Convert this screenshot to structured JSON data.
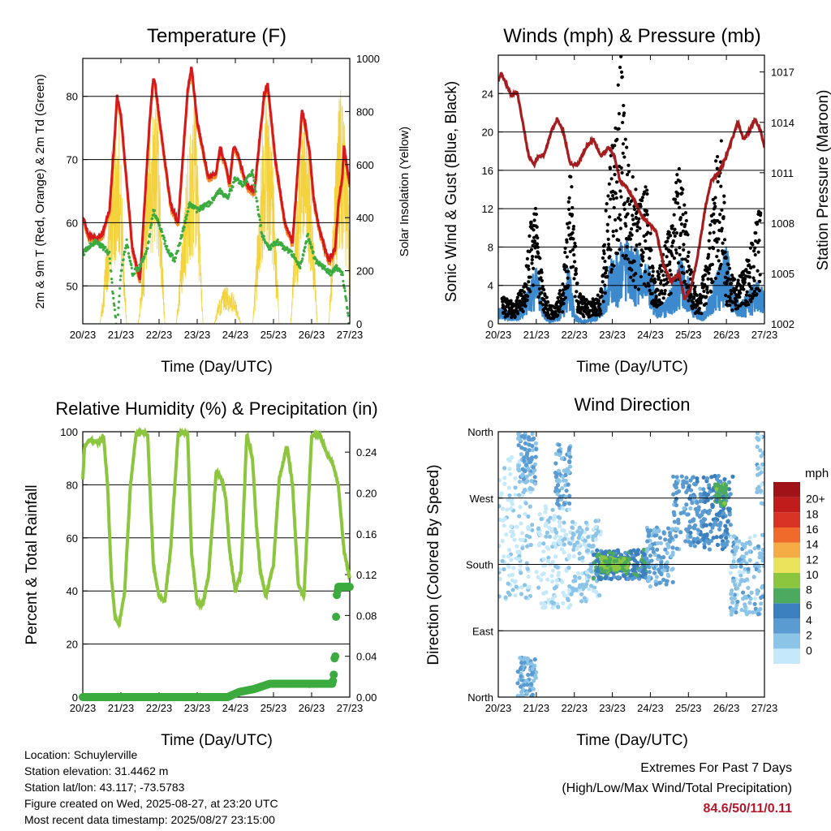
{
  "time_ticks": [
    "20/23",
    "21/23",
    "22/23",
    "23/23",
    "24/23",
    "25/23",
    "26/23",
    "27/23"
  ],
  "footer": {
    "location": "Location: Schuylerville",
    "elevation": "Station elevation: 31.4462 m",
    "latlon": "Station lat/lon: 43.117; -73.5783",
    "created": "Figure created on Wed, 2025-08-27, at 23:20 UTC",
    "recent": "Most recent data timestamp: 2025/08/27 23:15:00",
    "extremes_title": "Extremes For Past 7 Days",
    "extremes_subtitle": "(High/Low/Max Wind/Total Precipitation)",
    "extremes_value": "84.6/50/11/0.11"
  },
  "chart_data": [
    {
      "id": "temperature",
      "type": "line",
      "title": "Temperature (F)",
      "xlabel": "Time (Day/UTC)",
      "ylabel": "2m & 9m T (Red, Orange) & 2m Td (Green)",
      "ylabel_right": "Solar Insolation (Yellow)",
      "xlim": [
        0,
        7
      ],
      "ylim": [
        44,
        86
      ],
      "ylim_right": [
        0,
        1000
      ],
      "yticks": [
        50,
        60,
        70,
        80
      ],
      "yticks_right": [
        0,
        200,
        400,
        600,
        800,
        1000
      ],
      "grid": true,
      "series": [
        {
          "key": "temp",
          "color": "#d7191c",
          "x": [
            0,
            0.15,
            0.35,
            0.5,
            0.7,
            0.85,
            0.9,
            1.0,
            1.3,
            1.5,
            1.75,
            1.85,
            1.9,
            2.0,
            2.3,
            2.5,
            2.75,
            2.85,
            2.9,
            3.0,
            3.3,
            3.5,
            3.6,
            3.75,
            3.85,
            3.95,
            4.05,
            4.3,
            4.5,
            4.75,
            4.85,
            4.95,
            5.05,
            5.3,
            5.5,
            5.75,
            5.85,
            5.95,
            6.05,
            6.2,
            6.45,
            6.55,
            6.62,
            6.7,
            6.8,
            6.85,
            6.9,
            7.0
          ],
          "y": [
            61,
            58,
            57.5,
            58,
            62,
            75,
            80,
            77,
            56,
            51,
            76,
            83,
            82,
            77,
            63,
            60,
            81,
            84.6,
            82,
            76,
            67,
            68,
            72,
            69,
            66,
            72,
            71,
            66,
            65,
            80,
            82,
            76,
            70,
            60,
            57,
            78,
            75,
            71,
            64,
            59,
            54,
            55,
            56,
            63,
            67,
            72,
            70,
            66
          ]
        },
        {
          "key": "solar",
          "axis": "right",
          "color": "#f4d23c",
          "x": [
            0.45,
            0.55,
            0.75,
            0.95,
            1.15,
            1.45,
            1.55,
            1.75,
            1.95,
            2.15,
            2.45,
            2.55,
            2.75,
            2.95,
            3.15,
            3.45,
            3.55,
            3.75,
            3.95,
            4.15,
            4.45,
            4.55,
            4.75,
            4.95,
            5.15,
            5.45,
            5.55,
            5.75,
            5.95,
            6.15,
            6.45,
            6.55,
            6.75,
            6.95,
            7.0
          ],
          "y": [
            0,
            150,
            650,
            820,
            0,
            0,
            180,
            700,
            900,
            0,
            0,
            200,
            650,
            880,
            0,
            0,
            80,
            150,
            120,
            0,
            0,
            250,
            900,
            750,
            0,
            0,
            300,
            800,
            700,
            0,
            0,
            350,
            980,
            600,
            200
          ]
        },
        {
          "key": "dewpoint",
          "color": "#3cab3f",
          "x": [
            0,
            0.2,
            0.35,
            0.55,
            0.7,
            0.8,
            0.9,
            1.0,
            1.15,
            1.3,
            1.5,
            1.7,
            1.85,
            2.0,
            2.2,
            2.4,
            2.6,
            2.8,
            3.0,
            3.3,
            3.6,
            3.8,
            4.0,
            4.2,
            4.45,
            4.7,
            4.9,
            5.1,
            5.3,
            5.5,
            5.7,
            5.9,
            6.1,
            6.3,
            6.5,
            6.65,
            6.8,
            6.9,
            7.0
          ],
          "y": [
            55,
            56.5,
            57,
            56,
            55,
            48,
            43,
            52,
            57,
            52,
            53,
            56,
            62,
            60,
            56,
            54,
            58,
            63,
            62,
            63,
            65,
            64,
            67,
            66,
            68,
            58,
            56,
            57,
            56,
            55,
            53,
            58,
            54,
            53,
            52,
            53,
            52,
            48,
            43
          ]
        }
      ]
    },
    {
      "id": "winds",
      "type": "line",
      "title": "Winds (mph) & Pressure (mb)",
      "xlabel": "Time (Day/UTC)",
      "ylabel": "Sonic Wind & Gust (Blue, Black)",
      "ylabel_right": "Station Pressure (Maroon)",
      "xlim": [
        0,
        7
      ],
      "ylim": [
        0,
        28
      ],
      "ylim_right": [
        1002,
        1018
      ],
      "yticks": [
        0,
        4,
        8,
        12,
        16,
        20,
        24
      ],
      "yticks_right": [
        1002,
        1005,
        1008,
        1011,
        1014,
        1017
      ],
      "grid": true,
      "series": [
        {
          "key": "wind",
          "color": "#3c89cd",
          "x": [
            0,
            0.2,
            0.5,
            0.7,
            0.85,
            1.0,
            1.2,
            1.4,
            1.6,
            1.75,
            1.85,
            2.0,
            2.2,
            2.4,
            2.6,
            2.8,
            3.0,
            3.2,
            3.4,
            3.6,
            3.8,
            4.0,
            4.2,
            4.4,
            4.6,
            4.8,
            5.0,
            5.2,
            5.4,
            5.6,
            5.8,
            6.0,
            6.2,
            6.4,
            6.6,
            6.8,
            7.0
          ],
          "y": [
            1.5,
            1.2,
            1.0,
            2.5,
            4.0,
            5.5,
            1.0,
            0.5,
            1.0,
            3.0,
            6.0,
            1.0,
            0.3,
            0.5,
            1.0,
            4.0,
            6.0,
            7.0,
            8.0,
            7.0,
            6.0,
            5.0,
            2.0,
            2.0,
            4.0,
            6.0,
            4.0,
            1.5,
            1.0,
            3.0,
            5.0,
            7.0,
            3.0,
            2.0,
            3.0,
            4.0,
            3.0
          ]
        },
        {
          "key": "gust",
          "color": "#000000",
          "x": [
            0.1,
            0.4,
            0.7,
            0.85,
            0.95,
            1.05,
            1.3,
            1.5,
            1.7,
            1.8,
            1.9,
            2.1,
            2.4,
            2.7,
            2.85,
            3.0,
            3.1,
            3.2,
            3.35,
            3.5,
            3.7,
            3.9,
            4.1,
            4.3,
            4.55,
            4.7,
            4.85,
            5.1,
            5.3,
            5.55,
            5.7,
            5.85,
            6.0,
            6.2,
            6.45,
            6.7,
            6.9
          ],
          "y": [
            2.5,
            2.0,
            4.0,
            9.0,
            13.0,
            7.0,
            2.0,
            1.5,
            4.0,
            9.0,
            15.5,
            3.0,
            2.0,
            3.0,
            12.0,
            17.0,
            19.0,
            26.0,
            18.0,
            14.0,
            11.0,
            13.0,
            4.0,
            6.0,
            10.0,
            15.0,
            13.0,
            4.0,
            2.5,
            8.0,
            14.0,
            19.5,
            6.0,
            4.0,
            5.0,
            8.0,
            11.0
          ]
        },
        {
          "key": "pressure",
          "axis": "right",
          "color": "#a51d1f",
          "x": [
            0,
            0.08,
            0.2,
            0.35,
            0.5,
            0.6,
            0.8,
            0.95,
            1.05,
            1.2,
            1.4,
            1.55,
            1.7,
            1.9,
            2.1,
            2.3,
            2.5,
            2.7,
            2.9,
            3.05,
            3.2,
            3.35,
            3.55,
            3.75,
            3.95,
            4.15,
            4.35,
            4.55,
            4.75,
            4.9,
            5.05,
            5.2,
            5.35,
            5.45,
            5.6,
            5.8,
            6.0,
            6.15,
            6.3,
            6.45,
            6.6,
            6.75,
            6.9,
            7.0
          ],
          "y": [
            1016.5,
            1016.9,
            1016.3,
            1015.6,
            1015.8,
            1014.5,
            1012.0,
            1011.5,
            1012.0,
            1012.0,
            1013.5,
            1014.2,
            1013.5,
            1011.5,
            1011.5,
            1012.5,
            1013.0,
            1012.0,
            1012.5,
            1012.0,
            1010.5,
            1010.2,
            1009.5,
            1008.5,
            1008.0,
            1007.5,
            1005.5,
            1004.5,
            1005.0,
            1003.5,
            1004.0,
            1005.5,
            1007.5,
            1009.0,
            1010.5,
            1011.0,
            1012.0,
            1013.0,
            1014.0,
            1013.0,
            1013.5,
            1014.2,
            1013.5,
            1012.5
          ]
        }
      ]
    },
    {
      "id": "humidity",
      "type": "line",
      "title": "Relative Humidity (%) & Precipitation (in)",
      "xlabel": "Time (Day/UTC)",
      "ylabel": "Percent & Total Rainfall",
      "xlim": [
        0,
        7
      ],
      "ylim": [
        0,
        100
      ],
      "ylim_right": [
        0,
        0.26
      ],
      "yticks": [
        0,
        20,
        40,
        60,
        80,
        100
      ],
      "yticks_right": [
        0.0,
        0.04,
        0.08,
        0.12,
        0.16,
        0.2,
        0.24
      ],
      "yticks_right_labels": [
        "0.00",
        "0.04",
        "0.08",
        "0.12",
        "0.16",
        "0.20",
        "0.24"
      ],
      "grid": true,
      "series": [
        {
          "key": "rh",
          "color": "#8cc63f",
          "x": [
            0,
            0.05,
            0.2,
            0.4,
            0.55,
            0.65,
            0.75,
            0.85,
            0.95,
            1.1,
            1.25,
            1.4,
            1.55,
            1.7,
            1.85,
            2.0,
            2.15,
            2.3,
            2.5,
            2.65,
            2.75,
            2.85,
            3.0,
            3.15,
            3.3,
            3.5,
            3.65,
            3.75,
            3.85,
            4.0,
            4.15,
            4.3,
            4.45,
            4.55,
            4.65,
            4.8,
            5.0,
            5.15,
            5.35,
            5.5,
            5.65,
            5.8,
            6.0,
            6.2,
            6.4,
            6.55,
            6.7,
            6.85,
            7.0
          ],
          "y": [
            82,
            95,
            97,
            96,
            98,
            80,
            45,
            30,
            27,
            40,
            80,
            99,
            100,
            99,
            50,
            38,
            36,
            55,
            99,
            100,
            99,
            55,
            35,
            35,
            46,
            85,
            82,
            75,
            55,
            40,
            47,
            99,
            90,
            65,
            48,
            38,
            50,
            82,
            95,
            80,
            42,
            38,
            98,
            99,
            92,
            88,
            80,
            55,
            45
          ]
        },
        {
          "key": "precip",
          "axis": "right",
          "color": "#3cab3f",
          "x": [
            0,
            1,
            2,
            3,
            3.8,
            4.1,
            4.5,
            4.9,
            5.5,
            6.0,
            6.55,
            6.58,
            6.6,
            6.62,
            6.65,
            6.7,
            6.8,
            6.9,
            7.0
          ],
          "y": [
            0,
            0,
            0,
            0,
            0,
            0.005,
            0.008,
            0.013,
            0.013,
            0.013,
            0.013,
            0.022,
            0.038,
            0.04,
            0.098,
            0.108,
            0.108,
            0.108,
            0.108
          ]
        }
      ]
    },
    {
      "id": "direction",
      "type": "scatter",
      "title": "Wind Direction",
      "xlabel": "Time (Day/UTC)",
      "ylabel": "Direction (Colored By Speed)",
      "xlim": [
        0,
        7
      ],
      "ylim": [
        0,
        360
      ],
      "ytick_values": [
        0,
        90,
        180,
        270,
        360
      ],
      "ytick_labels": [
        "North",
        "East",
        "South",
        "West",
        "North"
      ],
      "grid": true,
      "colorbar_title": "mph",
      "colorbar_labels": [
        "0",
        "2",
        "4",
        "6",
        "8",
        "10",
        "12",
        "14",
        "16",
        "18",
        "20+"
      ],
      "colorbar_colors": [
        "#c6e9fa",
        "#8cc4e8",
        "#5a9bd2",
        "#3c7fbf",
        "#4caa5f",
        "#8cc63f",
        "#e8e35a",
        "#f5ac45",
        "#ef6a2b",
        "#d93326",
        "#c01c1c",
        "#a01218"
      ],
      "point_groups": [
        {
          "x_range": [
            0.0,
            0.9
          ],
          "y_range": [
            130,
            340
          ],
          "speed": 0.5
        },
        {
          "x_range": [
            0.5,
            1.0
          ],
          "y_range": [
            280,
            360
          ],
          "speed": 3
        },
        {
          "x_range": [
            0.5,
            1.0
          ],
          "y_range": [
            0,
            55
          ],
          "speed": 3
        },
        {
          "x_range": [
            1.0,
            1.9
          ],
          "y_range": [
            120,
            260
          ],
          "speed": 0.5
        },
        {
          "x_range": [
            1.5,
            1.9
          ],
          "y_range": [
            260,
            345
          ],
          "speed": 3
        },
        {
          "x_range": [
            1.9,
            2.7
          ],
          "y_range": [
            130,
            240
          ],
          "speed": 1.5
        },
        {
          "x_range": [
            2.5,
            3.9
          ],
          "y_range": [
            160,
            200
          ],
          "speed": 6
        },
        {
          "x_range": [
            2.7,
            3.4
          ],
          "y_range": [
            170,
            190
          ],
          "speed": 9
        },
        {
          "x_range": [
            3.9,
            4.6
          ],
          "y_range": [
            150,
            230
          ],
          "speed": 3
        },
        {
          "x_range": [
            4.6,
            5.4
          ],
          "y_range": [
            200,
            300
          ],
          "speed": 4
        },
        {
          "x_range": [
            5.4,
            6.2
          ],
          "y_range": [
            200,
            300
          ],
          "speed": 5
        },
        {
          "x_range": [
            5.7,
            6.0
          ],
          "y_range": [
            260,
            290
          ],
          "speed": 8
        },
        {
          "x_range": [
            6.1,
            7.0
          ],
          "y_range": [
            110,
            220
          ],
          "speed": 2
        },
        {
          "x_range": [
            6.8,
            7.0
          ],
          "y_range": [
            260,
            360
          ],
          "speed": 2
        }
      ]
    }
  ]
}
